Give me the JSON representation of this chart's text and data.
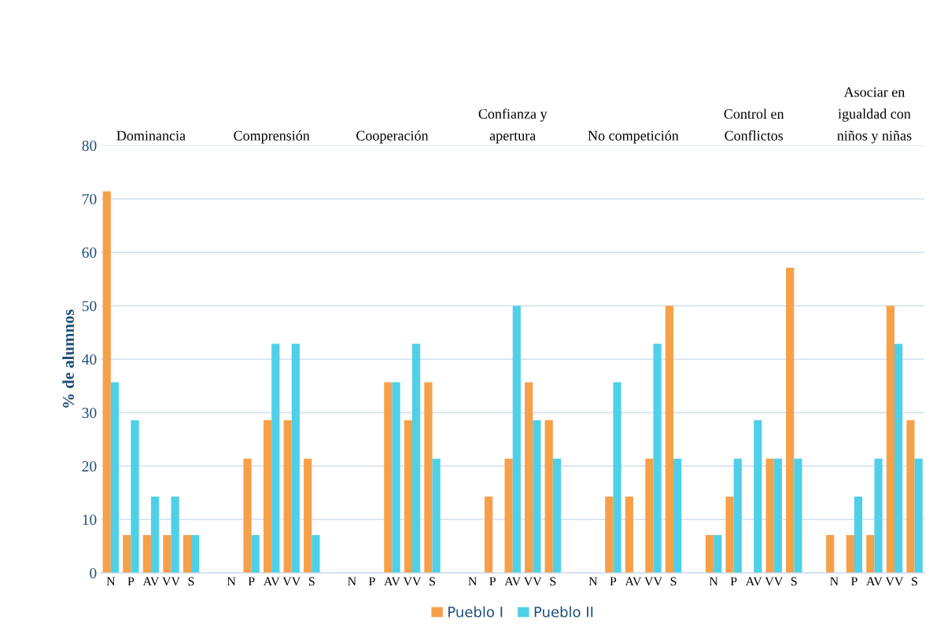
{
  "chart_data": {
    "type": "bar",
    "ylabel": "% de alumnos",
    "categories": [
      "N",
      "P",
      "AV",
      "VV",
      "S",
      null,
      "N",
      "P",
      "AV",
      "VV",
      "S",
      null,
      "N",
      "P",
      "AV",
      "VV",
      "S",
      null,
      "N",
      "P",
      "AV",
      "VV",
      "S",
      null,
      "N",
      "P",
      "AV",
      "VV",
      "S",
      null,
      "N",
      "P",
      "AV",
      "VV",
      "S",
      null,
      "N",
      "P",
      "AV",
      "VV",
      "S"
    ],
    "series": [
      {
        "name": "Pueblo I",
        "color": "#f7a04a",
        "values": [
          71.4,
          7.1,
          7.1,
          7.1,
          7.1,
          null,
          0,
          21.4,
          28.6,
          28.6,
          21.4,
          null,
          0,
          0,
          35.7,
          28.6,
          35.7,
          null,
          0,
          14.3,
          21.4,
          35.7,
          28.6,
          null,
          0,
          14.3,
          14.3,
          21.4,
          50,
          null,
          7.1,
          14.3,
          0,
          21.4,
          57.1,
          null,
          7.1,
          7.1,
          7.1,
          50,
          28.6
        ]
      },
      {
        "name": "Pueblo II",
        "color": "#4fd0e8",
        "values": [
          35.7,
          28.6,
          14.3,
          14.3,
          7.1,
          null,
          0,
          7.1,
          42.9,
          42.9,
          7.1,
          null,
          0,
          0,
          35.7,
          42.9,
          21.4,
          null,
          0,
          0,
          50,
          28.6,
          21.4,
          null,
          0,
          35.7,
          0,
          42.9,
          21.4,
          null,
          7.1,
          21.4,
          28.6,
          21.4,
          21.4,
          null,
          0,
          14.3,
          21.4,
          42.9,
          21.4
        ]
      }
    ],
    "annotations": [
      "Dominancia",
      "Comprensión",
      "Cooperación",
      "Confianza y\napertura",
      "No competición",
      "Control en\nConflictos",
      "Asociar en\nigualdad con\nniños y niñas"
    ],
    "ylim": [
      0,
      80
    ],
    "yticks": [
      0,
      10,
      20,
      30,
      40,
      50,
      60,
      70,
      80
    ],
    "grid": "y",
    "legend": "bottom"
  }
}
